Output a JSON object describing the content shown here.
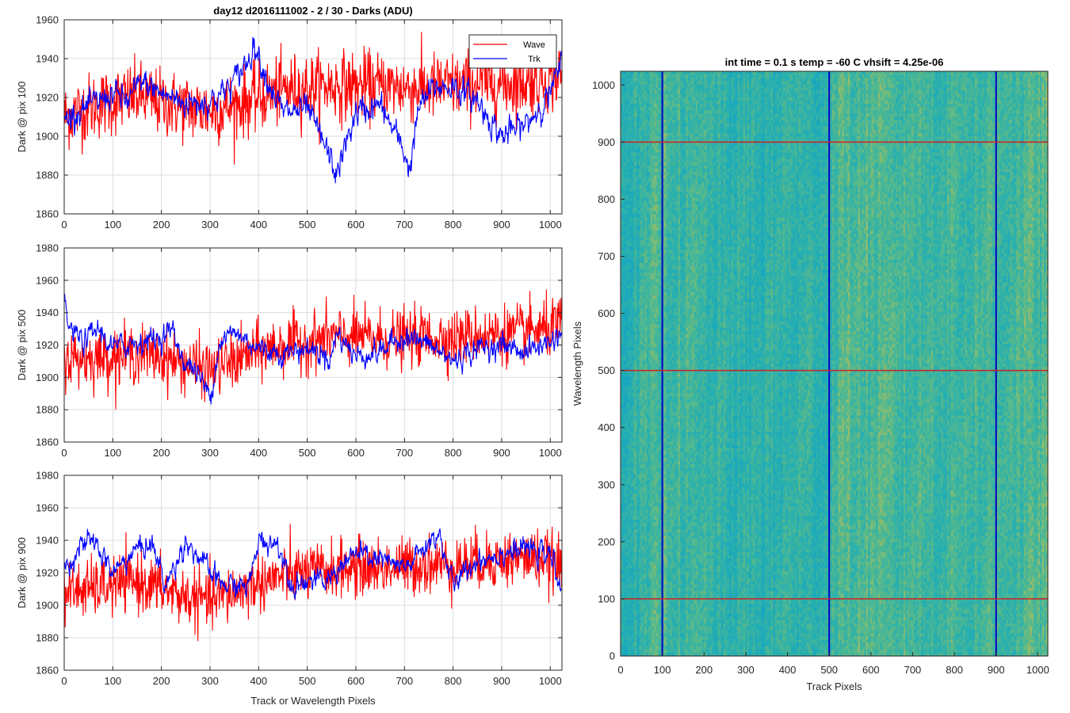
{
  "chart_data": [
    {
      "type": "line",
      "title": "day12 d2016111002 - 2 / 30 - Darks (ADU)",
      "ylabel": "Dark @ pix 100",
      "xlabel": "",
      "xlim": [
        0,
        1024
      ],
      "ylim": [
        1860,
        1960
      ],
      "xticks": [
        "0",
        "100",
        "200",
        "300",
        "400",
        "500",
        "600",
        "700",
        "800",
        "900",
        "1000"
      ],
      "yticks": [
        "1860",
        "1880",
        "1900",
        "1920",
        "1940",
        "1960"
      ],
      "grid": true,
      "legend": {
        "position": "top-right",
        "entries": [
          "Wave",
          "Trk"
        ]
      },
      "series": [
        {
          "name": "Wave",
          "color": "#ff0000",
          "x": [
            0,
            50,
            100,
            150,
            200,
            250,
            300,
            350,
            400,
            450,
            500,
            550,
            600,
            650,
            700,
            750,
            800,
            850,
            900,
            950,
            1000,
            1024
          ],
          "y": [
            1910,
            1915,
            1918,
            1921,
            1917,
            1915,
            1913,
            1916,
            1920,
            1924,
            1925,
            1926,
            1926,
            1926,
            1925,
            1925,
            1926,
            1927,
            1927,
            1928,
            1930,
            1932
          ]
        },
        {
          "name": "Trk",
          "color": "#0000ff",
          "x": [
            0,
            20,
            50,
            100,
            130,
            160,
            200,
            250,
            300,
            340,
            380,
            390,
            420,
            450,
            500,
            540,
            560,
            600,
            650,
            700,
            710,
            730,
            760,
            800,
            850,
            900,
            950,
            1000,
            1024
          ],
          "y": [
            1908,
            1912,
            1915,
            1922,
            1918,
            1928,
            1922,
            1917,
            1918,
            1925,
            1940,
            1948,
            1928,
            1912,
            1914,
            1893,
            1880,
            1912,
            1916,
            1892,
            1882,
            1915,
            1925,
            1926,
            1918,
            1900,
            1906,
            1922,
            1938
          ]
        }
      ]
    },
    {
      "type": "line",
      "title": "",
      "ylabel": "Dark @ pix 500",
      "xlabel": "",
      "xlim": [
        0,
        1024
      ],
      "ylim": [
        1860,
        1980
      ],
      "xticks": [
        "0",
        "100",
        "200",
        "300",
        "400",
        "500",
        "600",
        "700",
        "800",
        "900",
        "1000"
      ],
      "yticks": [
        "1860",
        "1880",
        "1900",
        "1920",
        "1940",
        "1960",
        "1980"
      ],
      "grid": true,
      "series": [
        {
          "name": "",
          "color": "#ff0000",
          "x": [
            0,
            50,
            100,
            150,
            200,
            250,
            300,
            350,
            400,
            450,
            500,
            550,
            600,
            650,
            700,
            750,
            800,
            850,
            900,
            950,
            1000,
            1024
          ],
          "y": [
            1912,
            1912,
            1913,
            1915,
            1913,
            1908,
            1905,
            1910,
            1916,
            1920,
            1922,
            1925,
            1925,
            1924,
            1924,
            1925,
            1924,
            1926,
            1927,
            1928,
            1930,
            1933
          ]
        },
        {
          "name": "",
          "color": "#0000ff",
          "x": [
            0,
            10,
            40,
            70,
            100,
            150,
            200,
            220,
            250,
            270,
            300,
            320,
            350,
            400,
            450,
            500,
            550,
            560,
            600,
            650,
            700,
            750,
            800,
            850,
            900,
            950,
            1000,
            1024
          ],
          "y": [
            1948,
            1930,
            1922,
            1930,
            1918,
            1922,
            1925,
            1930,
            1908,
            1905,
            1888,
            1922,
            1928,
            1918,
            1915,
            1918,
            1912,
            1928,
            1913,
            1916,
            1926,
            1920,
            1910,
            1918,
            1920,
            1916,
            1922,
            1928
          ]
        }
      ]
    },
    {
      "type": "line",
      "title": "",
      "ylabel": "Dark @ pix 900",
      "xlabel": "Track or Wavelength Pixels",
      "xlim": [
        0,
        1024
      ],
      "ylim": [
        1860,
        1980
      ],
      "xticks": [
        "0",
        "100",
        "200",
        "300",
        "400",
        "500",
        "600",
        "700",
        "800",
        "900",
        "1000"
      ],
      "yticks": [
        "1860",
        "1880",
        "1900",
        "1920",
        "1940",
        "1960",
        "1980"
      ],
      "grid": true,
      "series": [
        {
          "name": "",
          "color": "#ff0000",
          "x": [
            0,
            50,
            100,
            150,
            200,
            250,
            300,
            350,
            400,
            450,
            500,
            550,
            600,
            650,
            700,
            750,
            800,
            850,
            900,
            950,
            1000,
            1024
          ],
          "y": [
            1908,
            1910,
            1912,
            1915,
            1910,
            1905,
            1903,
            1908,
            1914,
            1918,
            1920,
            1922,
            1923,
            1923,
            1924,
            1925,
            1925,
            1927,
            1928,
            1929,
            1928,
            1922
          ]
        },
        {
          "name": "",
          "color": "#0000ff",
          "x": [
            0,
            30,
            60,
            100,
            150,
            180,
            210,
            250,
            300,
            330,
            380,
            400,
            440,
            470,
            500,
            540,
            570,
            600,
            650,
            700,
            750,
            770,
            800,
            850,
            900,
            950,
            1000,
            1024
          ],
          "y": [
            1922,
            1935,
            1940,
            1920,
            1935,
            1938,
            1912,
            1940,
            1920,
            1912,
            1912,
            1940,
            1938,
            1912,
            1916,
            1914,
            1925,
            1932,
            1928,
            1922,
            1938,
            1945,
            1912,
            1928,
            1932,
            1935,
            1930,
            1912
          ]
        }
      ]
    },
    {
      "type": "heatmap",
      "title": "int time = 0.1 s   temp = -60 C   vhsift = 4.25e-06",
      "xlabel": "Track Pixels",
      "ylabel": "Wavelength Pixels",
      "xlim": [
        0,
        1024
      ],
      "ylim": [
        0,
        1024
      ],
      "xticks": [
        "0",
        "100",
        "200",
        "300",
        "400",
        "500",
        "600",
        "700",
        "800",
        "900",
        "1000"
      ],
      "yticks": [
        "0",
        "100",
        "200",
        "300",
        "400",
        "500",
        "600",
        "700",
        "800",
        "900",
        "1000"
      ],
      "colormap": [
        "#14a5c2",
        "#2ab0ae",
        "#5cba88",
        "#b9bd59"
      ],
      "vertical_markers": {
        "color": "#0000c8",
        "values": [
          100,
          500,
          900
        ]
      },
      "horizontal_markers": {
        "color": "#d22020",
        "values": [
          100,
          500,
          900
        ]
      }
    }
  ]
}
